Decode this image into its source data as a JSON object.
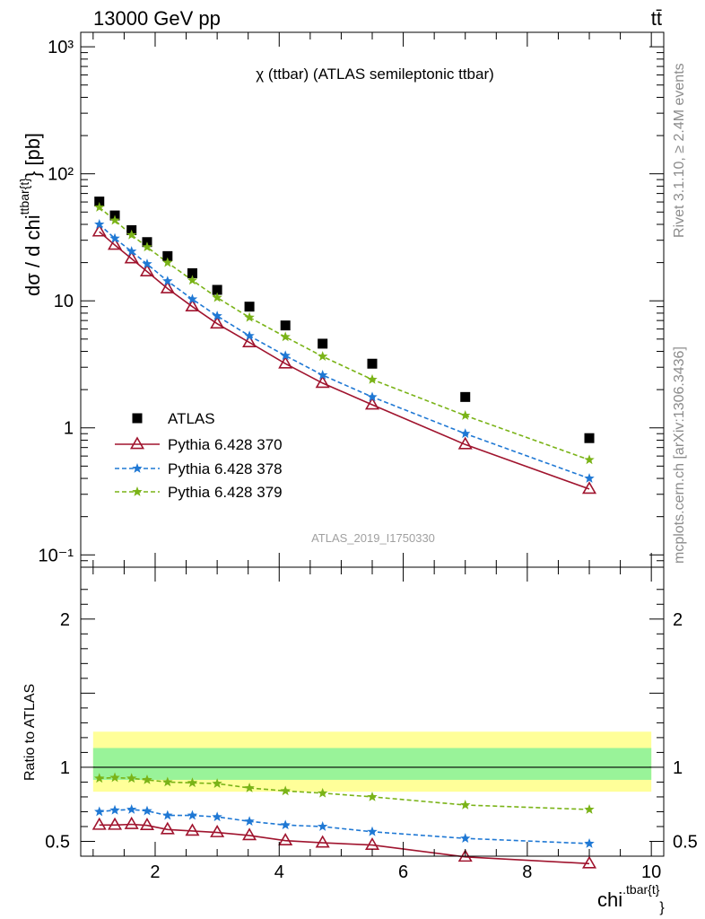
{
  "header": {
    "left": "13000 GeV pp",
    "right": "tt̄"
  },
  "side_labels": {
    "rivet": "Rivet 3.1.10, ≥ 2.4M events",
    "mcplots": "mcplots.cern.ch [arXiv:1306.3436]"
  },
  "colors": {
    "data": "#000000",
    "p370": "#a0142e",
    "p378": "#1f78d4",
    "p379": "#7ab317",
    "band_outer": "#ffff99",
    "band_inner": "#99f399"
  },
  "chart_data": [
    {
      "type": "line",
      "title": "χ (ttbar) (ATLAS semileptonic ttbar)",
      "watermark": "ATLAS_2019_I1750330",
      "ylabel_main": "dσ / d chi",
      "ylabel_sup": "ttbar{t}",
      "ylabel_unit": "} [pb]",
      "yscale": "log",
      "ylim": [
        0.08,
        1300
      ],
      "xlim": [
        0.8,
        10.2
      ],
      "y_ticks": [
        {
          "v": 1000,
          "label": "10³"
        },
        {
          "v": 100,
          "label": "10²"
        },
        {
          "v": 10,
          "label": "10"
        },
        {
          "v": 1,
          "label": "1"
        },
        {
          "v": 0.1,
          "label": "10⁻¹"
        }
      ],
      "x": [
        1.1,
        1.35,
        1.62,
        1.87,
        2.2,
        2.6,
        3.0,
        3.52,
        4.1,
        4.7,
        5.5,
        7.0,
        9.0
      ],
      "series": [
        {
          "name": "ATLAS",
          "marker": "square",
          "values": [
            60.5,
            47.0,
            36.0,
            29.0,
            22.5,
            16.5,
            12.2,
            9.0,
            6.4,
            4.6,
            3.2,
            1.75,
            0.83
          ]
        },
        {
          "name": "Pythia 6.428 370",
          "marker": "triangle",
          "line": "solid",
          "values": [
            35.0,
            27.5,
            21.5,
            17.0,
            12.5,
            9.0,
            6.6,
            4.7,
            3.2,
            2.25,
            1.52,
            0.74,
            0.33
          ]
        },
        {
          "name": "Pythia 6.428 378",
          "marker": "star",
          "line": "dashed",
          "values": [
            40.0,
            31.0,
            24.5,
            19.5,
            14.3,
            10.3,
            7.6,
            5.3,
            3.7,
            2.6,
            1.75,
            0.9,
            0.4
          ]
        },
        {
          "name": "Pythia 6.428 379",
          "marker": "star",
          "line": "dashed",
          "values": [
            54.5,
            43.0,
            33.0,
            26.5,
            20.0,
            14.5,
            10.6,
            7.4,
            5.2,
            3.65,
            2.4,
            1.25,
            0.56
          ]
        }
      ]
    },
    {
      "type": "line",
      "ylabel": "Ratio to ATLAS",
      "xlabel": "chi",
      "xlabel_sup": ".tbar{t}",
      "xlabel_close": "}",
      "ylim": [
        0.4,
        2.35
      ],
      "xlim": [
        0.8,
        10.2
      ],
      "x_ticks": [
        {
          "v": 2,
          "label": "2"
        },
        {
          "v": 4,
          "label": "4"
        },
        {
          "v": 6,
          "label": "6"
        },
        {
          "v": 8,
          "label": "8"
        },
        {
          "v": 10,
          "label": "10"
        }
      ],
      "y_ticks": [
        {
          "v": 2,
          "label": "2"
        },
        {
          "v": 1,
          "label": "1"
        },
        {
          "v": 0.5,
          "label": "0.5"
        }
      ],
      "band": {
        "x_range": [
          1.0,
          10.0
        ],
        "outer": [
          0.835,
          1.24
        ],
        "inner": [
          0.915,
          1.13
        ]
      },
      "x": [
        1.1,
        1.35,
        1.62,
        1.87,
        2.2,
        2.6,
        3.0,
        3.52,
        4.1,
        4.7,
        5.5,
        7.0,
        9.0
      ],
      "series": [
        {
          "name": "Pythia 6.428 370",
          "values": [
            0.61,
            0.61,
            0.615,
            0.608,
            0.58,
            0.57,
            0.56,
            0.54,
            0.505,
            0.49,
            0.475,
            0.395,
            0.35
          ]
        },
        {
          "name": "Pythia 6.428 378",
          "values": [
            0.7,
            0.71,
            0.715,
            0.705,
            0.675,
            0.675,
            0.665,
            0.635,
            0.61,
            0.6,
            0.565,
            0.52,
            0.485
          ]
        },
        {
          "name": "Pythia 6.428 379",
          "values": [
            0.925,
            0.93,
            0.925,
            0.915,
            0.9,
            0.895,
            0.89,
            0.86,
            0.84,
            0.825,
            0.8,
            0.745,
            0.715
          ]
        }
      ]
    }
  ]
}
